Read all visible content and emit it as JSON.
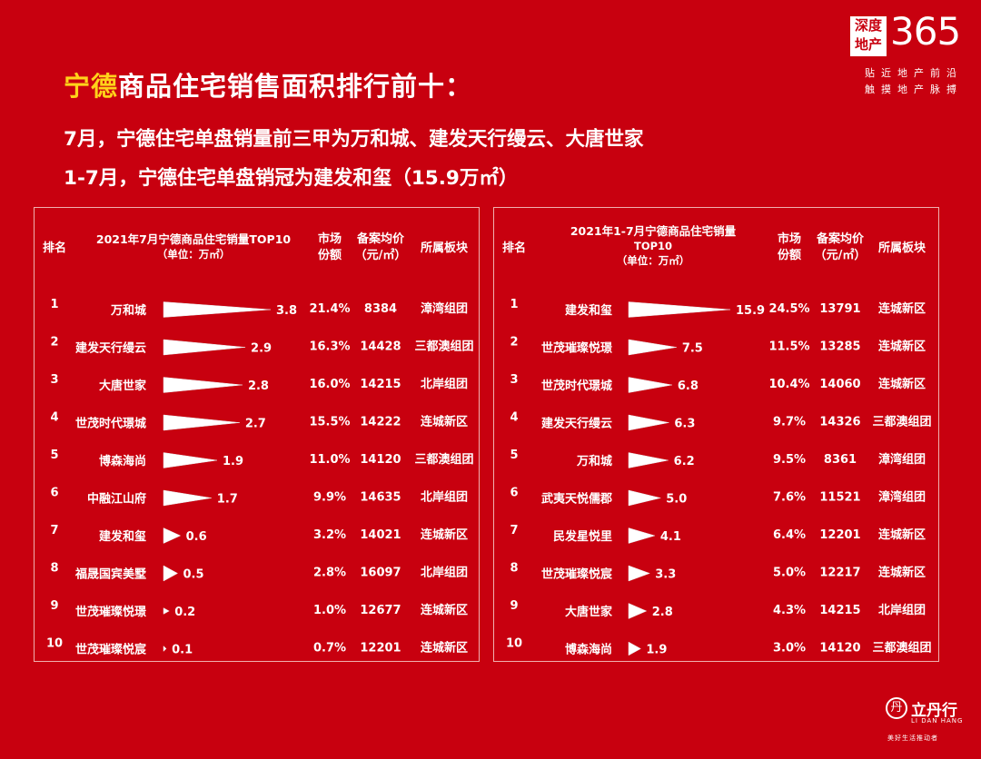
{
  "header": {
    "title_highlight": "宁德",
    "title_rest": "商品住宅销售面积排行前十：",
    "subtitle_1": "7月，宁德住宅单盘销量前三甲为万和城、建发天行缦云、大唐世家",
    "subtitle_2": "1-7月，宁德住宅单盘销冠为建发和玺（15.9万㎡）"
  },
  "brand": {
    "box_line1": "深度",
    "box_line2": "地产",
    "number": "365",
    "slogan_1": "贴近地产前沿",
    "slogan_2": "触摸地产脉搏"
  },
  "footer_logo": {
    "name": "立丹行",
    "name_en": "LI DAN HANG",
    "tagline": "美好生活推动者"
  },
  "colors": {
    "background": "#c8000f",
    "highlight": "#ffd21a",
    "text": "#ffffff",
    "border": "#f0b0b0"
  },
  "chart_data": [
    {
      "type": "bar",
      "title_line1": "2021年7月宁德商品住宅销量TOP10",
      "title_line2": "（单位：万㎡）",
      "columns": {
        "rank": "排名",
        "share_line1": "市场",
        "share_line2": "份额",
        "price_line1": "备案均价",
        "price_line2": "（元/㎡）",
        "district": "所属板块"
      },
      "unit": "万㎡",
      "xlim": [
        0,
        3.8
      ],
      "rows": [
        {
          "rank": "1",
          "name": "万和城",
          "value": 3.8,
          "share": "21.4%",
          "price": "8384",
          "district": "漳湾组团"
        },
        {
          "rank": "2",
          "name": "建发天行缦云",
          "value": 2.9,
          "share": "16.3%",
          "price": "14428",
          "district": "三都澳组团"
        },
        {
          "rank": "3",
          "name": "大唐世家",
          "value": 2.8,
          "share": "16.0%",
          "price": "14215",
          "district": "北岸组团"
        },
        {
          "rank": "4",
          "name": "世茂时代璟城",
          "value": 2.7,
          "share": "15.5%",
          "price": "14222",
          "district": "连城新区"
        },
        {
          "rank": "5",
          "name": "博森海尚",
          "value": 1.9,
          "share": "11.0%",
          "price": "14120",
          "district": "三都澳组团"
        },
        {
          "rank": "6",
          "name": "中融江山府",
          "value": 1.7,
          "share": "9.9%",
          "price": "14635",
          "district": "北岸组团"
        },
        {
          "rank": "7",
          "name": "建发和玺",
          "value": 0.6,
          "share": "3.2%",
          "price": "14021",
          "district": "连城新区"
        },
        {
          "rank": "8",
          "name": "福晟国宾美墅",
          "value": 0.5,
          "share": "2.8%",
          "price": "16097",
          "district": "北岸组团"
        },
        {
          "rank": "9",
          "name": "世茂璀璨悦璟",
          "value": 0.2,
          "share": "1.0%",
          "price": "12677",
          "district": "连城新区"
        },
        {
          "rank": "10",
          "name": "世茂璀璨悦宸",
          "value": 0.1,
          "share": "0.7%",
          "price": "12201",
          "district": "连城新区"
        }
      ]
    },
    {
      "type": "bar",
      "title_line1": "2021年1-7月宁德商品住宅销量",
      "title_line2": "TOP10",
      "title_line3": "（单位：万㎡）",
      "columns": {
        "rank": "排名",
        "share_line1": "市场",
        "share_line2": "份额",
        "price_line1": "备案均价",
        "price_line2": "（元/㎡）",
        "district": "所属板块"
      },
      "unit": "万㎡",
      "xlim": [
        0,
        15.9
      ],
      "rows": [
        {
          "rank": "1",
          "name": "建发和玺",
          "value": 15.9,
          "share": "24.5%",
          "price": "13791",
          "district": "连城新区"
        },
        {
          "rank": "2",
          "name": "世茂璀璨悦璟",
          "value": 7.5,
          "share": "11.5%",
          "price": "13285",
          "district": "连城新区"
        },
        {
          "rank": "3",
          "name": "世茂时代璟城",
          "value": 6.8,
          "share": "10.4%",
          "price": "14060",
          "district": "连城新区"
        },
        {
          "rank": "4",
          "name": "建发天行缦云",
          "value": 6.3,
          "share": "9.7%",
          "price": "14326",
          "district": "三都澳组团"
        },
        {
          "rank": "5",
          "name": "万和城",
          "value": 6.2,
          "share": "9.5%",
          "price": "8361",
          "district": "漳湾组团"
        },
        {
          "rank": "6",
          "name": "武夷天悦儒郡",
          "value": 5.0,
          "share": "7.6%",
          "price": "11521",
          "district": "漳湾组团"
        },
        {
          "rank": "7",
          "name": "民发星悦里",
          "value": 4.1,
          "share": "6.4%",
          "price": "12201",
          "district": "连城新区"
        },
        {
          "rank": "8",
          "name": "世茂璀璨悦宸",
          "value": 3.3,
          "share": "5.0%",
          "price": "12217",
          "district": "连城新区"
        },
        {
          "rank": "9",
          "name": "大唐世家",
          "value": 2.8,
          "share": "4.3%",
          "price": "14215",
          "district": "北岸组团"
        },
        {
          "rank": "10",
          "name": "博森海尚",
          "value": 1.9,
          "share": "3.0%",
          "price": "14120",
          "district": "三都澳组团"
        }
      ]
    }
  ]
}
